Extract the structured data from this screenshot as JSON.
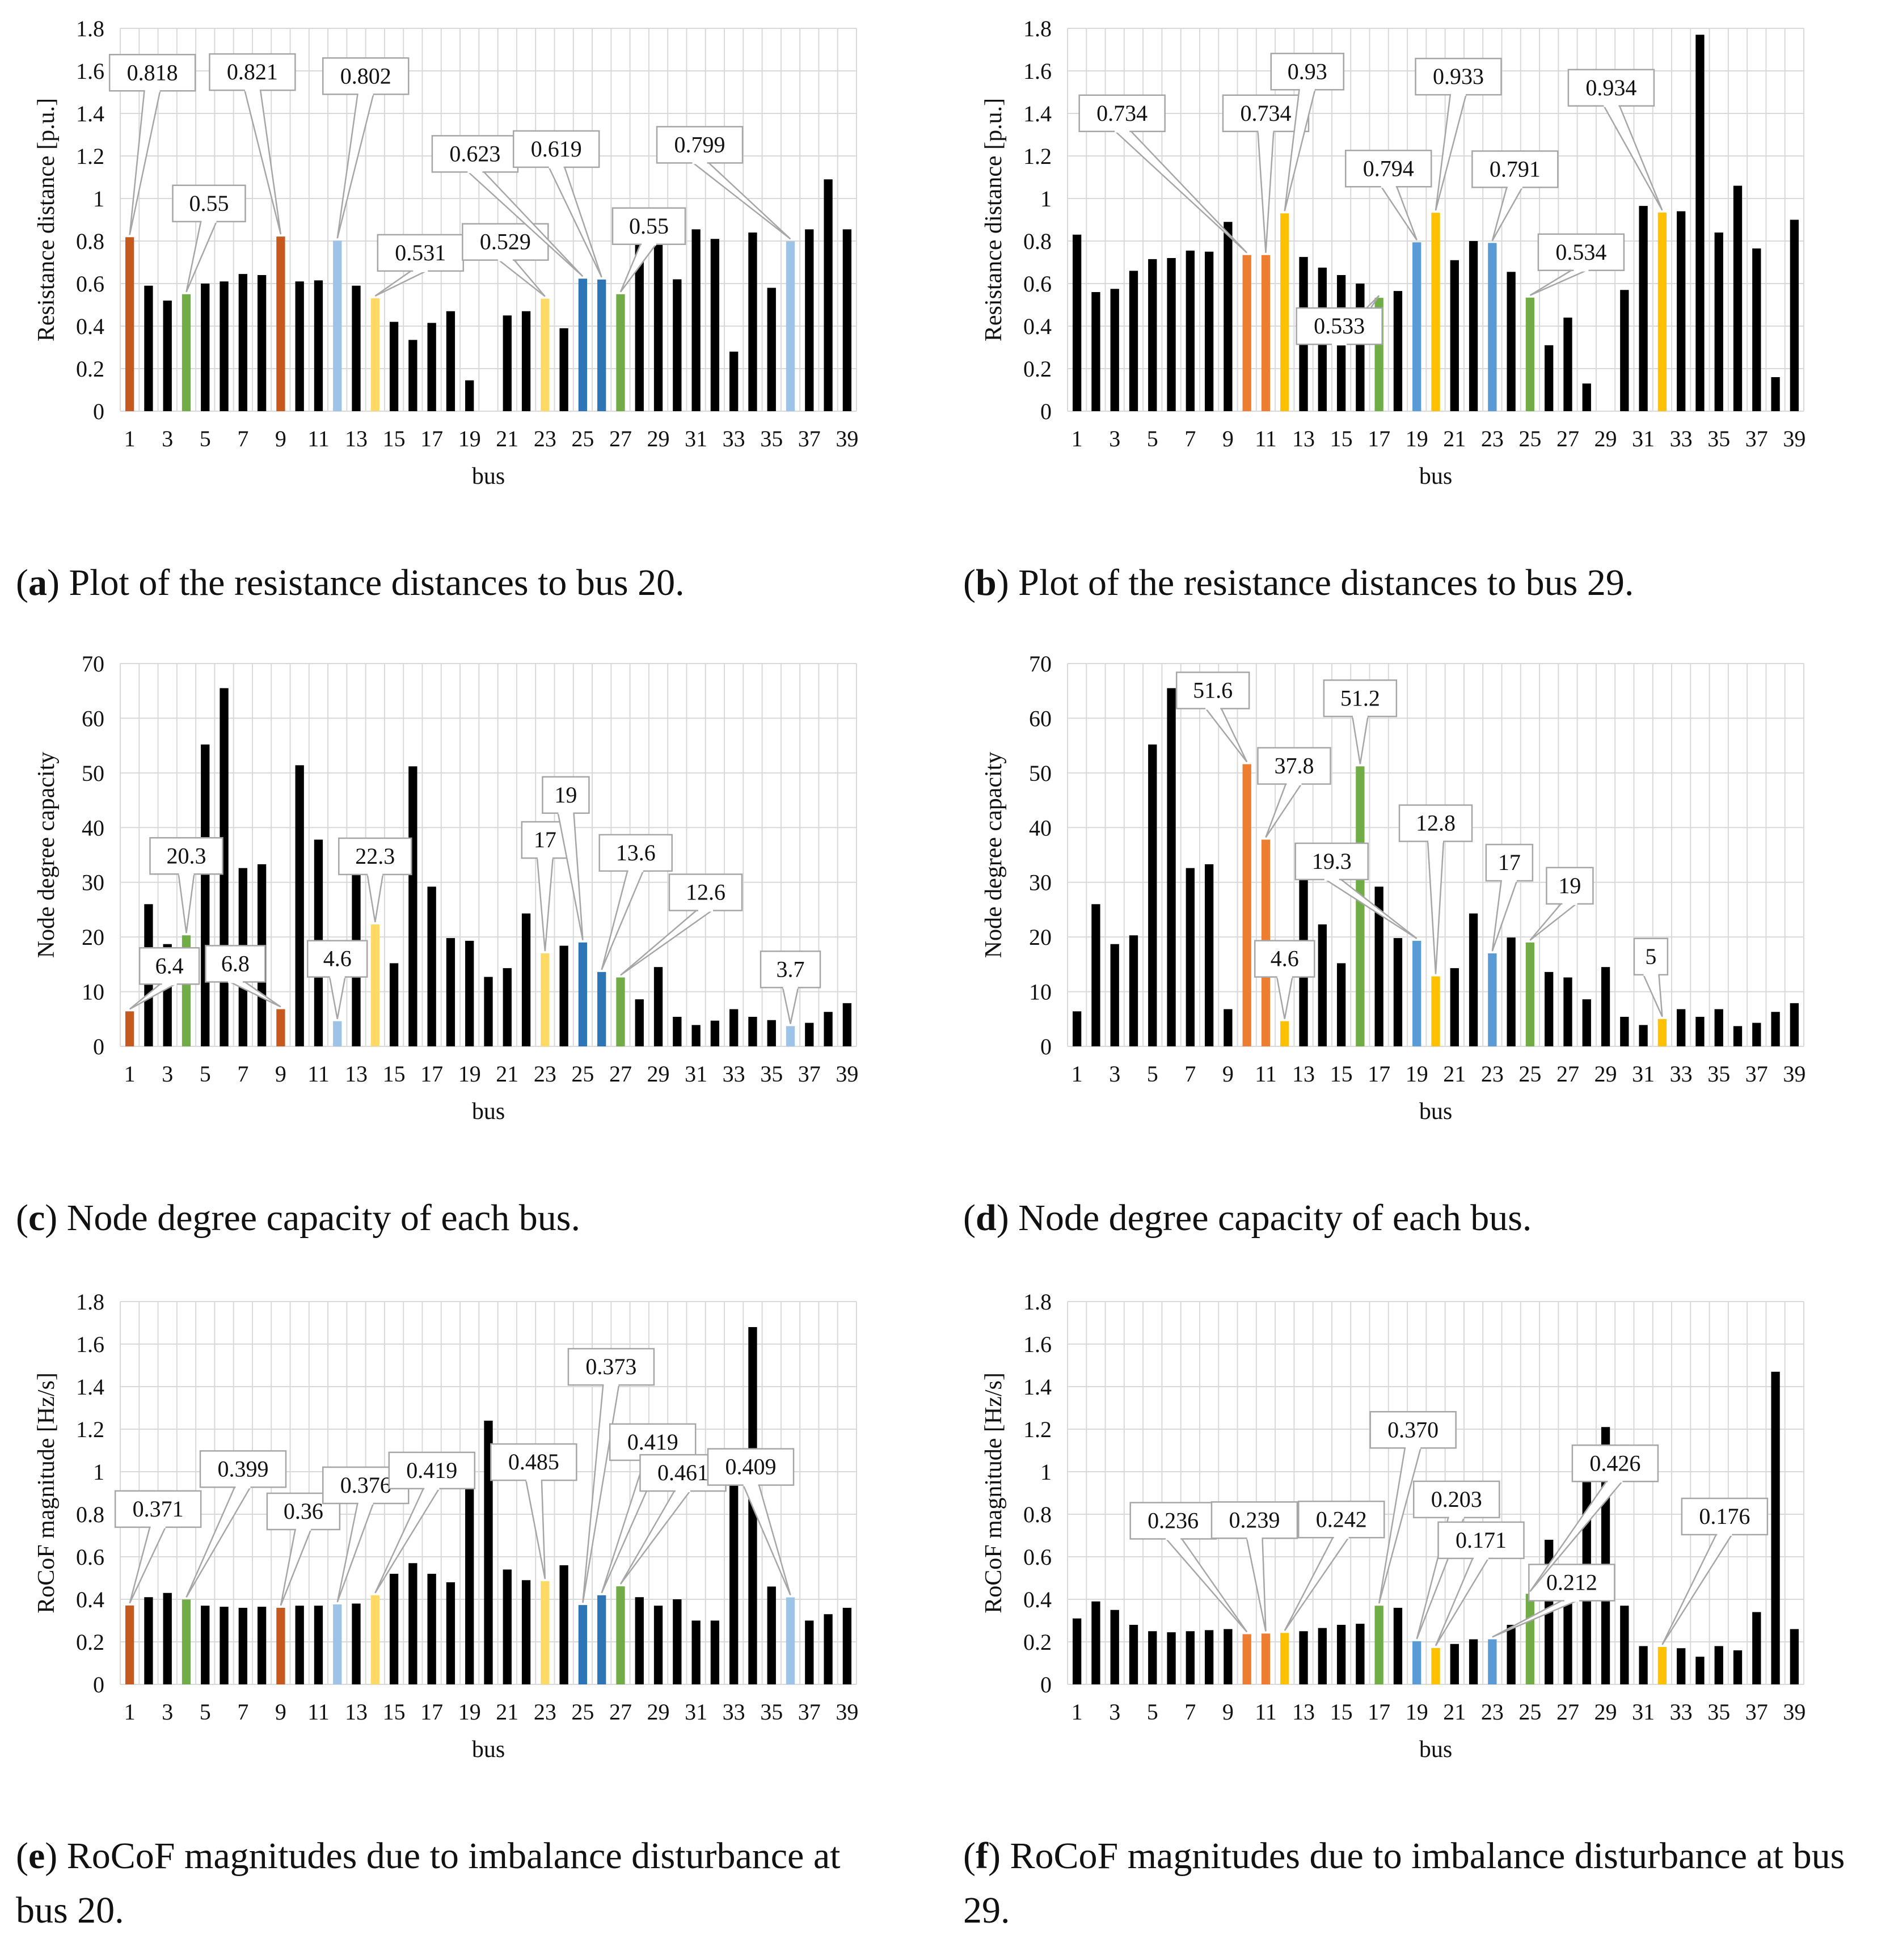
{
  "colors": {
    "black": "#000000",
    "dark_orange": "#c65a1e",
    "orange": "#ed7d31",
    "light_blue": "#9dc3e6",
    "blue": "#2e75b6",
    "mid_blue": "#5b9bd5",
    "light_yellow": "#ffd966",
    "gold": "#ffc000",
    "green": "#70ad47",
    "grid": "#d9d9d9"
  },
  "chart_data": [
    {
      "id": "a",
      "type": "bar",
      "caption_letter": "a",
      "caption_text": ") Plot of the resistance distances to bus 20.",
      "xlabel": "bus",
      "ylabel": "Resistance distance [p.u.]",
      "ylim": [
        0,
        1.8
      ],
      "yticks": [
        "0",
        "0.2",
        "0.4",
        "0.6",
        "0.8",
        "1",
        "1.2",
        "1.4",
        "1.6",
        "1.8"
      ],
      "values": [
        0.818,
        0.59,
        0.52,
        0.55,
        0.6,
        0.61,
        0.645,
        0.64,
        0.821,
        0.61,
        0.615,
        0.802,
        0.59,
        0.531,
        0.42,
        0.335,
        0.415,
        0.47,
        0.145,
        0,
        0.45,
        0.47,
        0.529,
        0.39,
        0.623,
        0.619,
        0.55,
        0.915,
        0.93,
        0.62,
        0.855,
        0.81,
        0.28,
        0.84,
        0.58,
        0.799,
        0.855,
        1.09,
        0.855
      ],
      "bar_colors": {
        "1": "dark_orange",
        "4": "green",
        "9": "dark_orange",
        "12": "light_blue",
        "14": "light_yellow",
        "23": "light_yellow",
        "25": "blue",
        "26": "blue",
        "27": "green",
        "36": "light_blue"
      },
      "annotations": [
        {
          "bus": 1,
          "label": "0.818"
        },
        {
          "bus": 4,
          "label": "0.55"
        },
        {
          "bus": 9,
          "label": "0.821"
        },
        {
          "bus": 12,
          "label": "0.802"
        },
        {
          "bus": 14,
          "label": "0.531"
        },
        {
          "bus": 23,
          "label": "0.529"
        },
        {
          "bus": 25,
          "label": "0.623"
        },
        {
          "bus": 26,
          "label": "0.619"
        },
        {
          "bus": 27,
          "label": "0.55"
        },
        {
          "bus": 36,
          "label": "0.799"
        }
      ]
    },
    {
      "id": "b",
      "type": "bar",
      "caption_letter": "b",
      "caption_text": ") Plot of the resistance distances to bus 29.",
      "xlabel": "bus",
      "ylabel": "Resistance distance [p.u.]",
      "ylim": [
        0,
        1.8
      ],
      "yticks": [
        "0",
        "0.2",
        "0.4",
        "0.6",
        "0.8",
        "1",
        "1.2",
        "1.4",
        "1.6",
        "1.8"
      ],
      "values": [
        0.83,
        0.56,
        0.575,
        0.66,
        0.715,
        0.72,
        0.755,
        0.75,
        0.89,
        0.734,
        0.734,
        0.93,
        0.725,
        0.675,
        0.64,
        0.6,
        0.533,
        0.565,
        0.794,
        0.933,
        0.71,
        0.8,
        0.791,
        0.655,
        0.534,
        0.31,
        0.44,
        0.13,
        0,
        0.57,
        0.965,
        0.934,
        0.94,
        1.77,
        0.84,
        1.06,
        0.765,
        0.16,
        0.9
      ],
      "bar_colors": {
        "10": "orange",
        "11": "orange",
        "12": "gold",
        "17": "green",
        "19": "mid_blue",
        "20": "gold",
        "23": "mid_blue",
        "25": "green",
        "32": "gold"
      },
      "annotations": [
        {
          "bus": 10,
          "label": "0.734"
        },
        {
          "bus": 11,
          "label": "0.734"
        },
        {
          "bus": 12,
          "label": "0.93"
        },
        {
          "bus": 17,
          "label": "0.533"
        },
        {
          "bus": 19,
          "label": "0.794"
        },
        {
          "bus": 20,
          "label": "0.933"
        },
        {
          "bus": 23,
          "label": "0.791"
        },
        {
          "bus": 25,
          "label": "0.534"
        },
        {
          "bus": 32,
          "label": "0.934"
        }
      ]
    },
    {
      "id": "c",
      "type": "bar",
      "caption_letter": "c",
      "caption_text": ") Node degree capacity of each bus.",
      "xlabel": "bus",
      "ylabel": "Node degree capacity",
      "ylim": [
        0,
        70
      ],
      "yticks": [
        "0",
        "10",
        "20",
        "30",
        "40",
        "50",
        "60",
        "70"
      ],
      "values": [
        6.4,
        26,
        18.7,
        20.3,
        55.2,
        65.5,
        32.6,
        33.3,
        6.8,
        51.4,
        37.8,
        4.6,
        35.4,
        22.3,
        15.2,
        51.2,
        29.2,
        19.8,
        19.3,
        12.7,
        14.3,
        24.3,
        17,
        18.4,
        19,
        13.6,
        12.6,
        8.6,
        14.5,
        5.4,
        3.9,
        4.7,
        6.8,
        5.4,
        4.8,
        3.7,
        4.3,
        6.3,
        7.9
      ],
      "bar_colors": {
        "1": "dark_orange",
        "4": "green",
        "9": "dark_orange",
        "12": "light_blue",
        "14": "light_yellow",
        "23": "light_yellow",
        "25": "blue",
        "26": "blue",
        "27": "green",
        "36": "light_blue"
      },
      "annotations": [
        {
          "bus": 1,
          "label": "6.4"
        },
        {
          "bus": 4,
          "label": "20.3"
        },
        {
          "bus": 9,
          "label": "6.8"
        },
        {
          "bus": 12,
          "label": "4.6"
        },
        {
          "bus": 14,
          "label": "22.3"
        },
        {
          "bus": 23,
          "label": "17"
        },
        {
          "bus": 25,
          "label": "19"
        },
        {
          "bus": 26,
          "label": "13.6"
        },
        {
          "bus": 27,
          "label": "12.6"
        },
        {
          "bus": 36,
          "label": "3.7"
        }
      ]
    },
    {
      "id": "d",
      "type": "bar",
      "caption_letter": "d",
      "caption_text": ") Node degree capacity of each bus.",
      "xlabel": "bus",
      "ylabel": "Node degree capacity",
      "ylim": [
        0,
        70
      ],
      "yticks": [
        "0",
        "10",
        "20",
        "30",
        "40",
        "50",
        "60",
        "70"
      ],
      "values": [
        6.4,
        26,
        18.7,
        20.3,
        55.2,
        65.5,
        32.6,
        33.3,
        6.8,
        51.6,
        37.8,
        4.6,
        35.4,
        22.3,
        15.2,
        51.2,
        29.2,
        19.8,
        19.3,
        12.8,
        14.3,
        24.3,
        17,
        19.9,
        19,
        13.6,
        12.6,
        8.6,
        14.5,
        5.4,
        3.9,
        5,
        6.8,
        5.4,
        6.8,
        3.7,
        4.3,
        6.3,
        7.9
      ],
      "bar_colors": {
        "10": "orange",
        "11": "orange",
        "12": "gold",
        "16": "green",
        "19": "mid_blue",
        "20": "gold",
        "23": "mid_blue",
        "25": "green",
        "32": "gold"
      },
      "annotations": [
        {
          "bus": 10,
          "label": "51.6"
        },
        {
          "bus": 11,
          "label": "37.8"
        },
        {
          "bus": 12,
          "label": "4.6"
        },
        {
          "bus": 16,
          "label": "51.2"
        },
        {
          "bus": 19,
          "label": "19.3"
        },
        {
          "bus": 20,
          "label": "12.8"
        },
        {
          "bus": 23,
          "label": "17"
        },
        {
          "bus": 25,
          "label": "19"
        },
        {
          "bus": 32,
          "label": "5"
        }
      ]
    },
    {
      "id": "e",
      "type": "bar",
      "caption_letter": "e",
      "caption_text": ") RoCoF magnitudes due to imbalance disturbance at bus 20.",
      "xlabel": "bus",
      "ylabel": "RoCoF magnitude [Hz/s]",
      "ylim": [
        0,
        1.8
      ],
      "yticks": [
        "0",
        "0.2",
        "0.4",
        "0.6",
        "0.8",
        "1",
        "1.2",
        "1.4",
        "1.6",
        "1.8"
      ],
      "values": [
        0.371,
        0.41,
        0.43,
        0.399,
        0.37,
        0.365,
        0.36,
        0.365,
        0.36,
        0.37,
        0.37,
        0.376,
        0.38,
        0.419,
        0.52,
        0.57,
        0.52,
        0.48,
        0.98,
        1.24,
        0.54,
        0.49,
        0.485,
        0.56,
        0.373,
        0.419,
        0.461,
        0.41,
        0.37,
        0.4,
        0.3,
        0.3,
        1.04,
        1.68,
        0.46,
        0.409,
        0.3,
        0.33,
        0.36
      ],
      "bar_colors": {
        "1": "dark_orange",
        "4": "green",
        "9": "dark_orange",
        "12": "light_blue",
        "14": "light_yellow",
        "23": "light_yellow",
        "25": "blue",
        "26": "blue",
        "27": "green",
        "36": "light_blue"
      },
      "annotations": [
        {
          "bus": 1,
          "label": "0.371"
        },
        {
          "bus": 4,
          "label": "0.399"
        },
        {
          "bus": 9,
          "label": "0.36"
        },
        {
          "bus": 12,
          "label": "0.376"
        },
        {
          "bus": 14,
          "label": "0.419"
        },
        {
          "bus": 23,
          "label": "0.485"
        },
        {
          "bus": 25,
          "label": "0.373"
        },
        {
          "bus": 26,
          "label": "0.419"
        },
        {
          "bus": 27,
          "label": "0.461"
        },
        {
          "bus": 36,
          "label": "0.409"
        }
      ]
    },
    {
      "id": "f",
      "type": "bar",
      "caption_letter": "f",
      "caption_text": ") RoCoF magnitudes due to imbalance disturbance at bus 29.",
      "xlabel": "bus",
      "ylabel": "RoCoF magnitude [Hz/s]",
      "ylim": [
        0,
        1.8
      ],
      "yticks": [
        "0",
        "0.2",
        "0.4",
        "0.6",
        "0.8",
        "1",
        "1.2",
        "1.4",
        "1.6",
        "1.8"
      ],
      "values": [
        0.31,
        0.39,
        0.35,
        0.28,
        0.25,
        0.245,
        0.25,
        0.255,
        0.26,
        0.236,
        0.239,
        0.242,
        0.25,
        0.265,
        0.28,
        0.285,
        0.37,
        0.36,
        0.203,
        0.171,
        0.19,
        0.212,
        0.212,
        0.28,
        0.426,
        0.68,
        0.54,
        1.09,
        1.21,
        0.37,
        0.18,
        0.176,
        0.17,
        0.13,
        0.18,
        0.16,
        0.34,
        1.47,
        0.26
      ],
      "bar_colors": {
        "10": "orange",
        "11": "orange",
        "12": "gold",
        "17": "green",
        "19": "mid_blue",
        "20": "gold",
        "23": "mid_blue",
        "25": "green",
        "32": "gold"
      },
      "annotations": [
        {
          "bus": 10,
          "label": "0.236"
        },
        {
          "bus": 11,
          "label": "0.239"
        },
        {
          "bus": 12,
          "label": "0.242"
        },
        {
          "bus": 17,
          "label": "0.370"
        },
        {
          "bus": 19,
          "label": "0.203"
        },
        {
          "bus": 20,
          "label": "0.171"
        },
        {
          "bus": 23,
          "label": "0.212"
        },
        {
          "bus": 25,
          "label": "0.426"
        },
        {
          "bus": 32,
          "label": "0.176"
        }
      ]
    }
  ]
}
